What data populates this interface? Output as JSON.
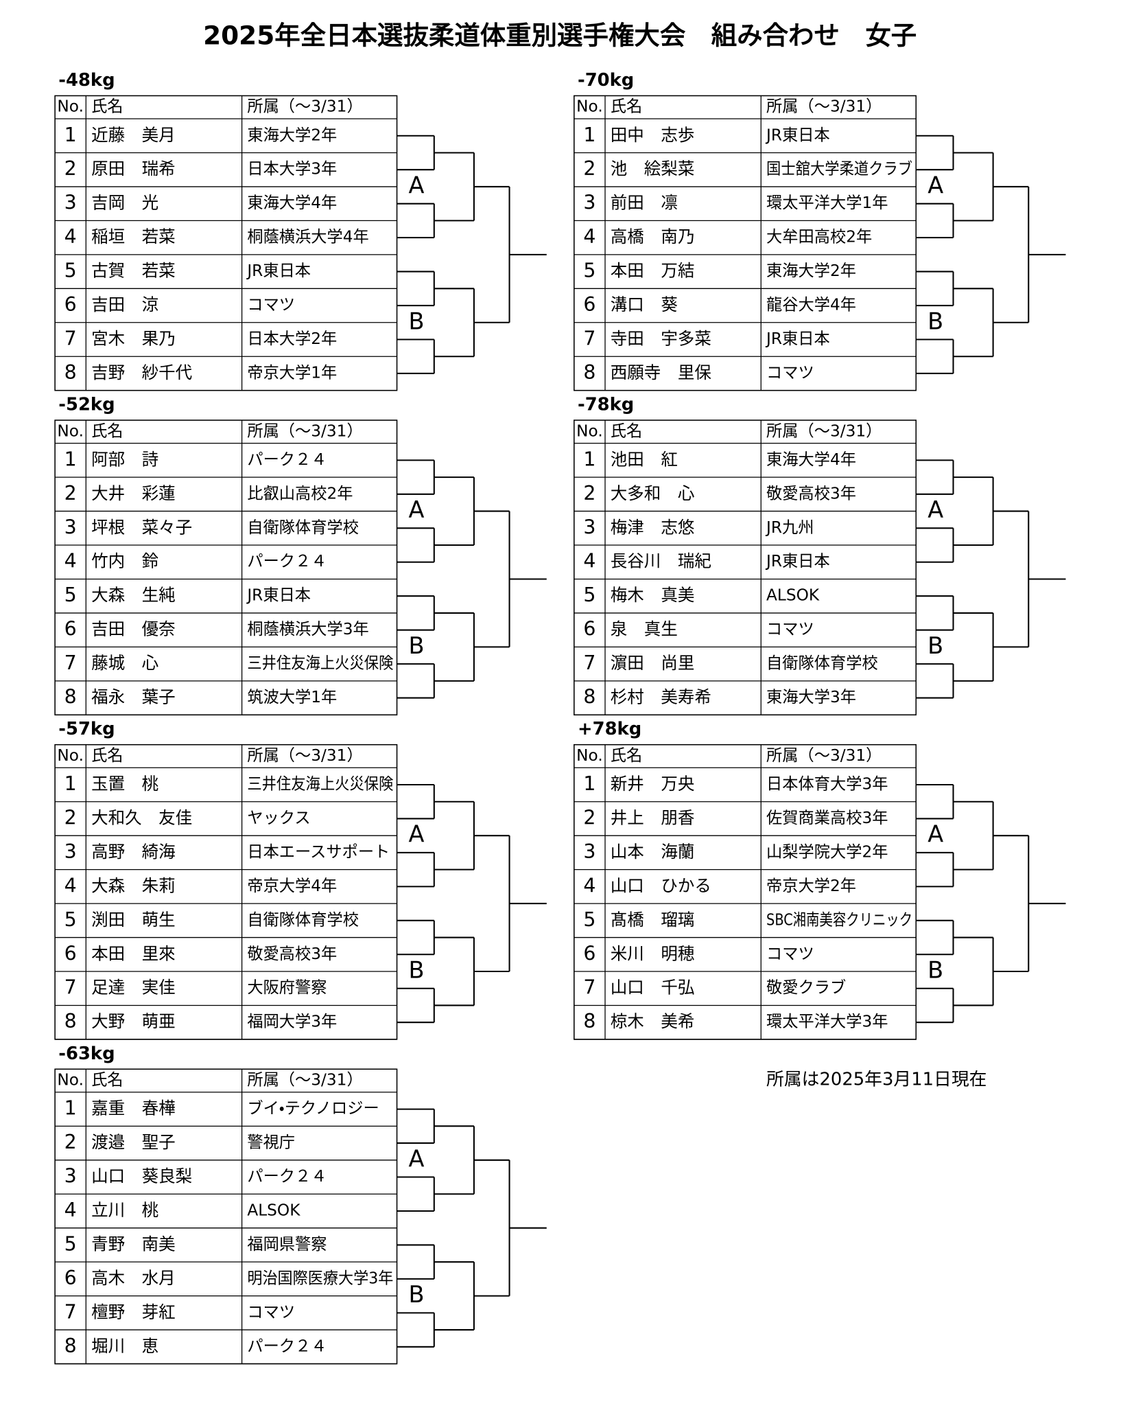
{
  "title": "2025年全日本選抜柔道体重別選手権大会　組み合わせ　女子",
  "note": "所属は2025年3月11日現在",
  "columns": [
    "No.",
    "氏名",
    "所属（～3/31）"
  ],
  "pools": [
    "A",
    "B"
  ],
  "divisions": [
    {
      "weight": "-48kg",
      "rows": [
        [
          1,
          "近藤　美月",
          "東海大学2年"
        ],
        [
          2,
          "原田　瑞希",
          "日本大学3年"
        ],
        [
          3,
          "吉岡　光",
          "東海大学4年"
        ],
        [
          4,
          "稲垣　若菜",
          "桐蔭横浜大学4年"
        ],
        [
          5,
          "古賀　若菜",
          "JR東日本"
        ],
        [
          6,
          "吉田　涼",
          "コマツ"
        ],
        [
          7,
          "宮木　果乃",
          "日本大学2年"
        ],
        [
          8,
          "吉野　紗千代",
          "帝京大学1年"
        ]
      ]
    },
    {
      "weight": "-52kg",
      "rows": [
        [
          1,
          "阿部　詩",
          "パーク２４"
        ],
        [
          2,
          "大井　彩蓮",
          "比叡山高校2年"
        ],
        [
          3,
          "坪根　菜々子",
          "自衛隊体育学校"
        ],
        [
          4,
          "竹内　鈴",
          "パーク２４"
        ],
        [
          5,
          "大森　生純",
          "JR東日本"
        ],
        [
          6,
          "吉田　優奈",
          "桐蔭横浜大学3年"
        ],
        [
          7,
          "藤城　心",
          "三井住友海上火災保険"
        ],
        [
          8,
          "福永　葉子",
          "筑波大学1年"
        ]
      ]
    },
    {
      "weight": "-57kg",
      "rows": [
        [
          1,
          "玉置　桃",
          "三井住友海上火災保険"
        ],
        [
          2,
          "大和久　友佳",
          "ヤックス"
        ],
        [
          3,
          "高野　綺海",
          "日本エースサポート"
        ],
        [
          4,
          "大森　朱莉",
          "帝京大学4年"
        ],
        [
          5,
          "渕田　萌生",
          "自衛隊体育学校"
        ],
        [
          6,
          "本田　里來",
          "敬愛高校3年"
        ],
        [
          7,
          "足達　実佳",
          "大阪府警察"
        ],
        [
          8,
          "大野　萌亜",
          "福岡大学3年"
        ]
      ]
    },
    {
      "weight": "-63kg",
      "rows": [
        [
          1,
          "嘉重　春樺",
          "ブイ・テクノロジー"
        ],
        [
          2,
          "渡邉　聖子",
          "警視庁"
        ],
        [
          3,
          "山口　葵良梨",
          "パーク２４"
        ],
        [
          4,
          "立川　桃",
          "ALSOK"
        ],
        [
          5,
          "青野　南美",
          "福岡県警察"
        ],
        [
          6,
          "高木　水月",
          "明治国際医療大学3年"
        ],
        [
          7,
          "檀野　芽紅",
          "コマツ"
        ],
        [
          8,
          "堀川　恵",
          "パーク２４"
        ]
      ]
    },
    {
      "weight": "-70kg",
      "rows": [
        [
          1,
          "田中　志歩",
          "JR東日本"
        ],
        [
          2,
          "池　絵梨菜",
          "国士舘大学柔道クラブ"
        ],
        [
          3,
          "前田　凛",
          "環太平洋大学1年"
        ],
        [
          4,
          "高橋　南乃",
          "大牟田高校2年"
        ],
        [
          5,
          "本田　万結",
          "東海大学2年"
        ],
        [
          6,
          "溝口　葵",
          "龍谷大学4年"
        ],
        [
          7,
          "寺田　宇多菜",
          "JR東日本"
        ],
        [
          8,
          "西願寺　里保",
          "コマツ"
        ]
      ]
    },
    {
      "weight": "-78kg",
      "rows": [
        [
          1,
          "池田　紅",
          "東海大学4年"
        ],
        [
          2,
          "大多和　心",
          "敬愛高校3年"
        ],
        [
          3,
          "梅津　志悠",
          "JR九州"
        ],
        [
          4,
          "長谷川　瑞紀",
          "JR東日本"
        ],
        [
          5,
          "梅木　真美",
          "ALSOK"
        ],
        [
          6,
          "泉　真生",
          "コマツ"
        ],
        [
          7,
          "濵田　尚里",
          "自衛隊体育学校"
        ],
        [
          8,
          "杉村　美寿希",
          "東海大学3年"
        ]
      ]
    },
    {
      "weight": "+78kg",
      "rows": [
        [
          1,
          "新井　万央",
          "日本体育大学3年"
        ],
        [
          2,
          "井上　朋香",
          "佐賀商業高校3年"
        ],
        [
          3,
          "山本　海蘭",
          "山梨学院大学2年"
        ],
        [
          4,
          "山口　ひかる",
          "帝京大学2年"
        ],
        [
          5,
          "髙橋　瑠璃",
          "SBC湘南美容クリニック"
        ],
        [
          6,
          "米川　明穂",
          "コマツ"
        ],
        [
          7,
          "山口　千弘",
          "敬愛クラブ"
        ],
        [
          8,
          "椋木　美希",
          "環太平洋大学3年"
        ]
      ]
    }
  ]
}
